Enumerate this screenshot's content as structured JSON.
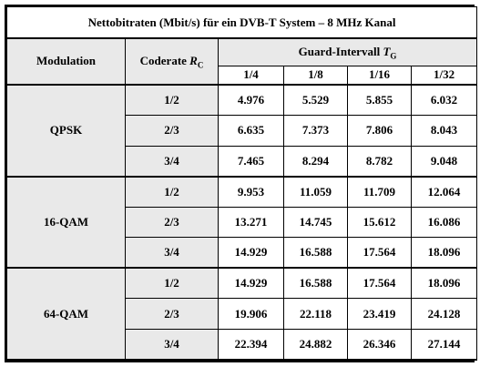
{
  "table": {
    "title": "Nettobitraten (Mbit/s) für ein DVB-T System – 8 MHz Kanal",
    "header": {
      "modulation": "Modulation",
      "coderate_prefix": "Coderate ",
      "coderate_symbol": "R",
      "coderate_sub": "C",
      "guard_prefix": "Guard-Intervall ",
      "guard_symbol": "T",
      "guard_sub": "G",
      "guard_cols": [
        "1/4",
        "1/8",
        "1/16",
        "1/32"
      ]
    },
    "groups": [
      {
        "modulation": "QPSK",
        "rows": [
          {
            "rate": "1/2",
            "values": [
              "4.976",
              "5.529",
              "5.855",
              "6.032"
            ]
          },
          {
            "rate": "2/3",
            "values": [
              "6.635",
              "7.373",
              "7.806",
              "8.043"
            ]
          },
          {
            "rate": "3/4",
            "values": [
              "7.465",
              "8.294",
              "8.782",
              "9.048"
            ]
          }
        ]
      },
      {
        "modulation": "16-QAM",
        "rows": [
          {
            "rate": "1/2",
            "values": [
              "9.953",
              "11.059",
              "11.709",
              "12.064"
            ]
          },
          {
            "rate": "2/3",
            "values": [
              "13.271",
              "14.745",
              "15.612",
              "16.086"
            ]
          },
          {
            "rate": "3/4",
            "values": [
              "14.929",
              "16.588",
              "17.564",
              "18.096"
            ]
          }
        ]
      },
      {
        "modulation": "64-QAM",
        "rows": [
          {
            "rate": "1/2",
            "values": [
              "14.929",
              "16.588",
              "17.564",
              "18.096"
            ]
          },
          {
            "rate": "2/3",
            "values": [
              "19.906",
              "22.118",
              "23.419",
              "24.128"
            ]
          },
          {
            "rate": "3/4",
            "values": [
              "22.394",
              "24.882",
              "26.346",
              "27.144"
            ]
          }
        ]
      }
    ]
  }
}
